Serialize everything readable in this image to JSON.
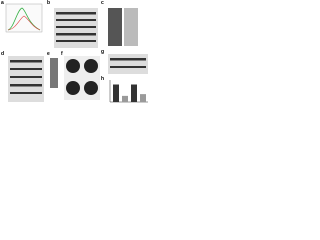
{
  "panels": [
    {
      "label": "a"
    },
    {
      "label": "b"
    },
    {
      "label": "c"
    },
    {
      "label": "d"
    },
    {
      "label": "e"
    },
    {
      "label": "f"
    },
    {
      "label": "g"
    },
    {
      "label": "h"
    }
  ],
  "bar_panel": {
    "ylim": [
      0,
      1.2
    ],
    "values": [
      1,
      0.35,
      1,
      0.45
    ],
    "colors": [
      "#333333",
      "#9a9a9a",
      "#333333",
      "#9a9a9a"
    ]
  }
}
